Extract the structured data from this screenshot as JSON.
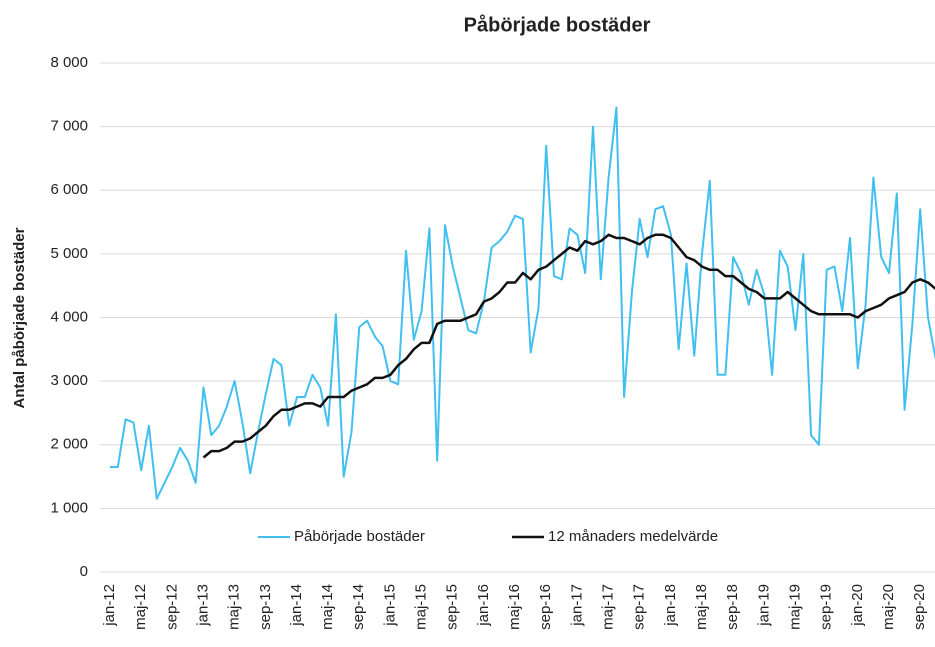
{
  "chart_data": {
    "type": "line",
    "title": "Påbörjade bostäder",
    "y_label": "Antal påbörjade bostäder",
    "categories": [
      "jan-12",
      null,
      null,
      null,
      "maj-12",
      null,
      null,
      null,
      "sep-12",
      null,
      null,
      null,
      "jan-13",
      null,
      null,
      null,
      "maj-13",
      null,
      null,
      null,
      "sep-13",
      null,
      null,
      null,
      "jan-14",
      null,
      null,
      null,
      "maj-14",
      null,
      null,
      null,
      "sep-14",
      null,
      null,
      null,
      "jan-15",
      null,
      null,
      null,
      "maj-15",
      null,
      null,
      null,
      "sep-15",
      null,
      null,
      null,
      "jan-16",
      null,
      null,
      null,
      "maj-16",
      null,
      null,
      null,
      "sep-16",
      null,
      null,
      null,
      "jan-17",
      null,
      null,
      null,
      "maj-17",
      null,
      null,
      null,
      "sep-17",
      null,
      null,
      null,
      "jan-18",
      null,
      null,
      null,
      "maj-18",
      null,
      null,
      null,
      "sep-18",
      null,
      null,
      null,
      "jan-19",
      null,
      null,
      null,
      "maj-19",
      null,
      null,
      null,
      "sep-19",
      null,
      null,
      null,
      "jan-20",
      null,
      null,
      null,
      "maj-20",
      null,
      null,
      null,
      "sep-20",
      null,
      null
    ],
    "series": [
      {
        "name": "Påbörjade bostäder",
        "color": "#41c0ef",
        "values": [
          1650,
          1650,
          2400,
          2350,
          1600,
          2300,
          1150,
          1400,
          1650,
          1950,
          1750,
          1400,
          2900,
          2150,
          2300,
          2600,
          3000,
          2350,
          1550,
          2200,
          2800,
          3350,
          3250,
          2300,
          2750,
          2750,
          3100,
          2900,
          2300,
          4050,
          1500,
          2200,
          3850,
          3950,
          3700,
          3550,
          3000,
          2950,
          5050,
          3650,
          4100,
          5400,
          1750,
          5450,
          4800,
          4300,
          3800,
          3750,
          4250,
          5100,
          5200,
          5350,
          5600,
          5550,
          3450,
          4150,
          6700,
          4650,
          4600,
          5400,
          5300,
          4700,
          7000,
          4600,
          6200,
          7300,
          2750,
          4400,
          5550,
          4950,
          5700,
          5750,
          5300,
          3500,
          4850,
          3400,
          5000,
          6150,
          3100,
          3100,
          4950,
          4700,
          4200,
          4750,
          4350,
          3100,
          5050,
          4800,
          3800,
          5000,
          2150,
          2000,
          4750,
          4800,
          4100,
          5250,
          3200,
          4200,
          6200,
          4950,
          4700,
          5950,
          2550,
          3900,
          5700,
          4000,
          3350
        ]
      },
      {
        "name": "12 månaders medelvärde",
        "color": "#111111",
        "values": [
          null,
          null,
          null,
          null,
          null,
          null,
          null,
          null,
          null,
          null,
          null,
          null,
          1800,
          1900,
          1900,
          1950,
          2050,
          2050,
          2100,
          2200,
          2300,
          2450,
          2550,
          2550,
          2600,
          2650,
          2650,
          2600,
          2750,
          2750,
          2750,
          2850,
          2900,
          2950,
          3050,
          3050,
          3100,
          3250,
          3350,
          3500,
          3600,
          3600,
          3900,
          3950,
          3950,
          3950,
          4000,
          4050,
          4250,
          4300,
          4400,
          4550,
          4550,
          4700,
          4600,
          4750,
          4800,
          4900,
          5000,
          5100,
          5050,
          5200,
          5150,
          5200,
          5300,
          5250,
          5250,
          5200,
          5150,
          5250,
          5300,
          5300,
          5250,
          5100,
          4950,
          4900,
          4800,
          4750,
          4750,
          4650,
          4650,
          4550,
          4450,
          4400,
          4300,
          4300,
          4300,
          4400,
          4300,
          4200,
          4100,
          4050,
          4050,
          4050,
          4050,
          4050,
          4000,
          4100,
          4150,
          4200,
          4300,
          4350,
          4400,
          4550,
          4600,
          4550,
          4450
        ]
      }
    ],
    "ylim": [
      0,
      8000
    ],
    "yticks": [
      0,
      {
        "value": 1000,
        "label": "1 000"
      },
      {
        "value": 2000,
        "label": "2 000"
      },
      {
        "value": 3000,
        "label": "3 000"
      },
      {
        "value": 4000,
        "label": "4 000"
      },
      {
        "value": 5000,
        "label": "5 000"
      },
      {
        "value": 6000,
        "label": "6 000"
      },
      {
        "value": 7000,
        "label": "7 000"
      },
      {
        "value": 8000,
        "label": "8 000"
      }
    ],
    "grid": true,
    "legend": "bottom"
  }
}
